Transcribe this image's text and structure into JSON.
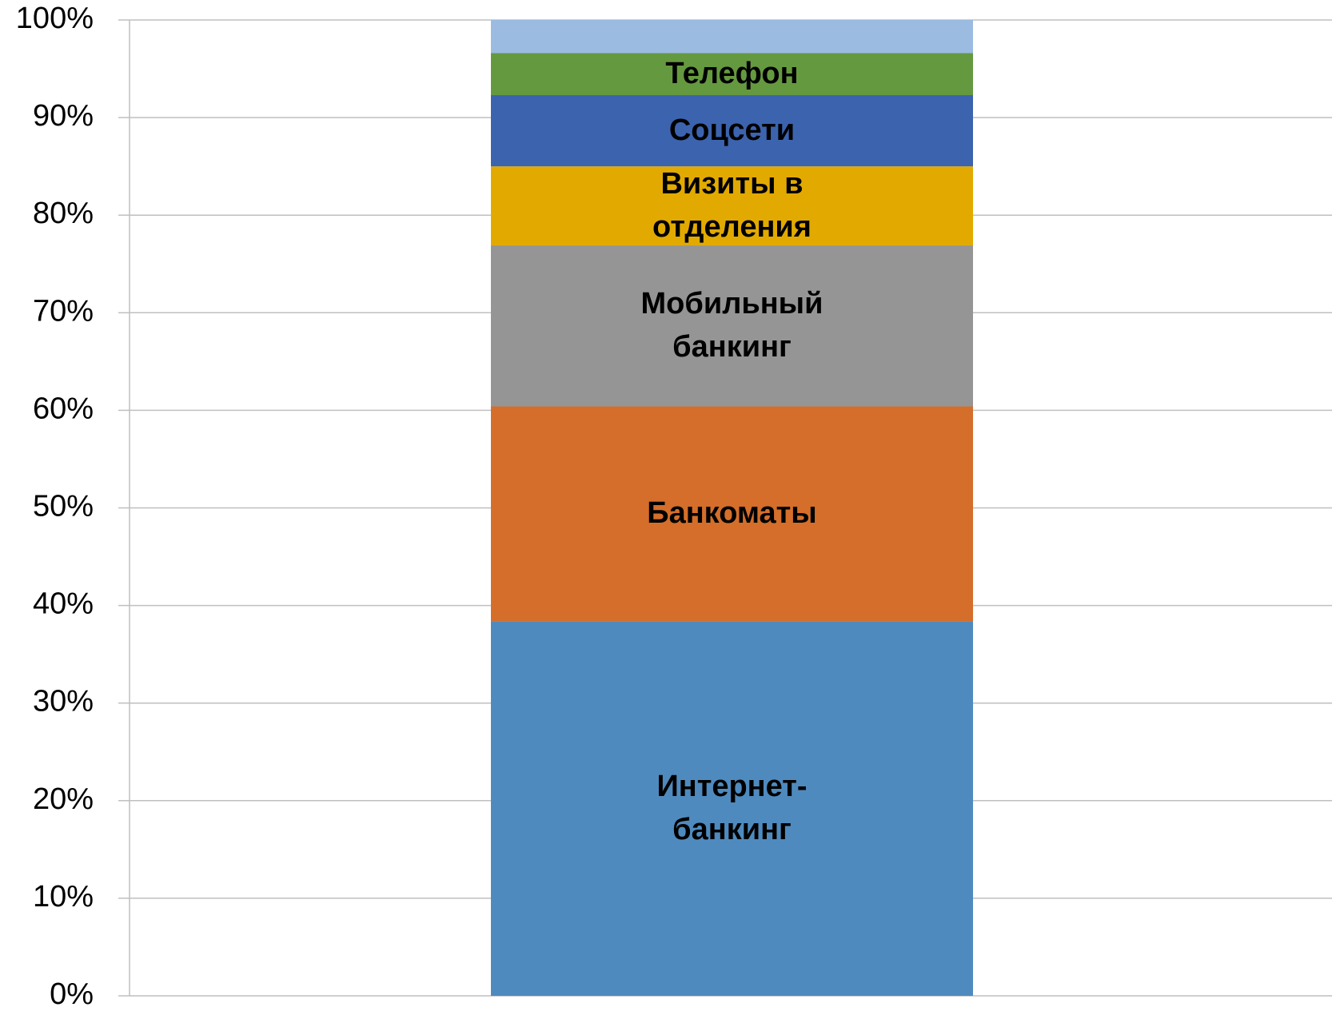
{
  "chart_data": {
    "type": "stacked_bar",
    "series": [
      {
        "name": "Интернет-банкинг",
        "color": "#4f8abe",
        "values": [
          38.4
        ]
      },
      {
        "name": "Банкоматы",
        "color": "#d46e2a",
        "values": [
          22
        ]
      },
      {
        "name": "Мобильный банкинг",
        "color": "#959595",
        "values": [
          16.5
        ]
      },
      {
        "name": "Визиты в отделения",
        "color": "#e2aa00",
        "values": [
          8.1
        ]
      },
      {
        "name": "Соцсети",
        "color": "#3c63ae",
        "values": [
          7.3
        ]
      },
      {
        "name": "Телефон",
        "color": "#65993f",
        "values": [
          4.3
        ]
      },
      {
        "name": null,
        "color": "#9bbbe0",
        "values": [
          3.4
        ]
      }
    ],
    "ylim": [
      0,
      100
    ],
    "yticks": [
      {
        "value": 0,
        "label": "0%"
      },
      {
        "value": 10,
        "label": "10%"
      },
      {
        "value": 20,
        "label": "20%"
      },
      {
        "value": 30,
        "label": "30%"
      },
      {
        "value": 40,
        "label": "40%"
      },
      {
        "value": 50,
        "label": "50%"
      },
      {
        "value": 60,
        "label": "60%"
      },
      {
        "value": 70,
        "label": "70%"
      },
      {
        "value": 80,
        "label": "80%"
      },
      {
        "value": 90,
        "label": "90%"
      },
      {
        "value": 100,
        "label": "100%"
      }
    ],
    "grid": true
  }
}
